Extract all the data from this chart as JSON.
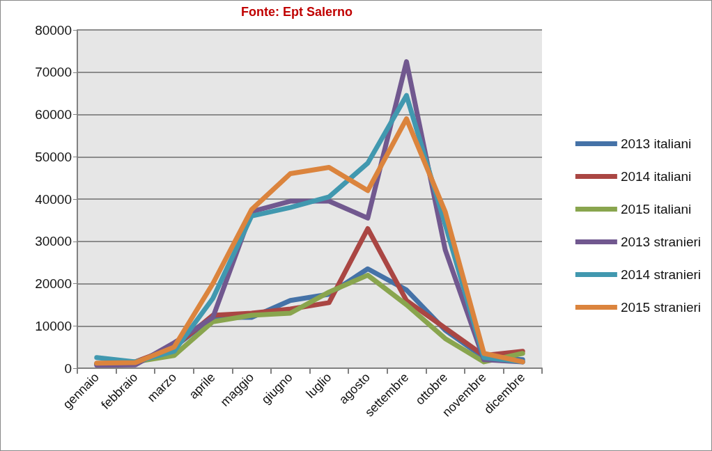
{
  "chart_data": {
    "type": "line",
    "title": "Fonte: Ept Salerno",
    "categories": [
      "gennaio",
      "febbraio",
      "marzo",
      "aprile",
      "maggio",
      "giugno",
      "luglio",
      "agosto",
      "settembre",
      "ottobre",
      "novembre",
      "dicembre"
    ],
    "series": [
      {
        "name": "2013 italiani",
        "color": "#4572a7",
        "values": [
          1000,
          1200,
          5000,
          12000,
          12000,
          16000,
          17500,
          23500,
          18500,
          9000,
          2500,
          2000
        ]
      },
      {
        "name": "2014 italiani",
        "color": "#aa4643",
        "values": [
          1000,
          1500,
          5000,
          12500,
          13000,
          14000,
          15500,
          33000,
          16000,
          9500,
          3000,
          4000
        ]
      },
      {
        "name": "2015 italiani",
        "color": "#89a54e",
        "values": [
          1000,
          1500,
          3000,
          11000,
          12500,
          13000,
          18000,
          22000,
          15000,
          7000,
          1500,
          3500
        ]
      },
      {
        "name": "2013 stranieri",
        "color": "#71588f",
        "values": [
          700,
          800,
          6000,
          12000,
          37000,
          39500,
          39500,
          35500,
          72500,
          28000,
          2000,
          1500
        ]
      },
      {
        "name": "2014 stranieri",
        "color": "#4198af",
        "values": [
          2500,
          1500,
          4000,
          16500,
          36000,
          38000,
          40500,
          48500,
          64500,
          34000,
          2500,
          1500
        ]
      },
      {
        "name": "2015 stranieri",
        "color": "#db843d",
        "values": [
          1200,
          1300,
          5000,
          20000,
          37500,
          46000,
          47500,
          42000,
          59000,
          37000,
          3500,
          1500
        ]
      }
    ],
    "ylim": [
      0,
      80000
    ],
    "yticks": [
      0,
      10000,
      20000,
      30000,
      40000,
      50000,
      60000,
      70000,
      80000
    ],
    "grid": "y",
    "legend": "right",
    "marker": "none",
    "line_style": "solid"
  }
}
